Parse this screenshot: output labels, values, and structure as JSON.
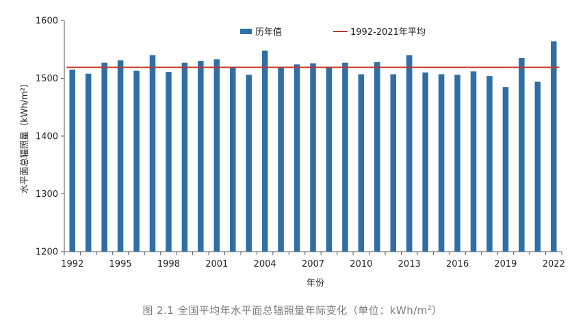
{
  "chart_data": {
    "type": "bar",
    "title": "",
    "xlabel": "年份",
    "ylabel": "水平面总辐照量（kWh/m²）",
    "ylim": [
      1200,
      1600
    ],
    "yticks": [
      1200,
      1300,
      1400,
      1500,
      1600
    ],
    "x_tick_labels": [
      "1992",
      "1995",
      "1998",
      "2001",
      "2004",
      "2007",
      "2010",
      "2013",
      "2016",
      "2019",
      "2022"
    ],
    "categories": [
      "1992",
      "1993",
      "1994",
      "1995",
      "1996",
      "1997",
      "1998",
      "1999",
      "2000",
      "2001",
      "2002",
      "2003",
      "2004",
      "2005",
      "2006",
      "2007",
      "2008",
      "2009",
      "2010",
      "2011",
      "2012",
      "2013",
      "2014",
      "2015",
      "2016",
      "2017",
      "2018",
      "2019",
      "2020",
      "2021",
      "2022"
    ],
    "series": [
      {
        "name": "历年值",
        "color": "#2E6FA6",
        "values": [
          1515,
          1508,
          1527,
          1531,
          1513,
          1540,
          1511,
          1527,
          1530,
          1533,
          1518,
          1506,
          1548,
          1518,
          1524,
          1526,
          1518,
          1527,
          1507,
          1528,
          1507,
          1540,
          1510,
          1507,
          1506,
          1512,
          1504,
          1485,
          1535,
          1494,
          1564
        ]
      }
    ],
    "reference_line": {
      "name": "1992-2021年平均",
      "color": "#C0392B",
      "value": 1519
    },
    "legend": "top",
    "grid": false
  },
  "caption": {
    "text": "图 2.1    全国平均年水平面总辐照量年际变化（单位：kWh/m",
    "superscript": "2",
    "suffix": "）"
  }
}
